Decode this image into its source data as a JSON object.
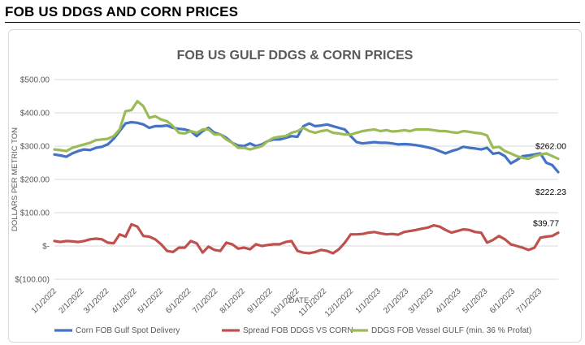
{
  "page": {
    "heading": "FOB US DDGS AND CORN PRICES"
  },
  "colors": {
    "corn": "#4472c4",
    "spread": "#c0504d",
    "ddgs": "#9bbb59",
    "grid": "#d9d9d9",
    "axis_text": "#595959",
    "title_text": "#595959"
  },
  "chart_data": {
    "type": "line",
    "title": "FOB US GULF DDGS & CORN PRICES",
    "xlabel": "DATE",
    "ylabel": "DOLLARS PER METRIC TON",
    "ylim": [
      -100,
      500
    ],
    "yticks": [
      {
        "value": 500,
        "label": "$500.00"
      },
      {
        "value": 400,
        "label": "$400.00"
      },
      {
        "value": 300,
        "label": "$300.00"
      },
      {
        "value": 200,
        "label": "$200.00"
      },
      {
        "value": 100,
        "label": "$100.00"
      },
      {
        "value": 0,
        "label": "$-"
      },
      {
        "value": -100,
        "label": "$(100.00)"
      }
    ],
    "x_range_weeks": [
      0,
      81
    ],
    "xticks": [
      {
        "week": 0,
        "label": "1/1/2022"
      },
      {
        "week": 4.4,
        "label": "2/1/2022"
      },
      {
        "week": 8.4,
        "label": "3/1/2022"
      },
      {
        "week": 12.9,
        "label": "4/1/2022"
      },
      {
        "week": 17.1,
        "label": "5/1/2022"
      },
      {
        "week": 21.6,
        "label": "6/1/2022"
      },
      {
        "week": 25.9,
        "label": "7/1/2022"
      },
      {
        "week": 30.3,
        "label": "8/1/2022"
      },
      {
        "week": 34.7,
        "label": "9/1/2022"
      },
      {
        "week": 39,
        "label": "10/1/2022"
      },
      {
        "week": 43.4,
        "label": "11/1/2022"
      },
      {
        "week": 47.7,
        "label": "12/1/2022"
      },
      {
        "week": 52.1,
        "label": "1/1/2023"
      },
      {
        "week": 56.6,
        "label": "2/1/2023"
      },
      {
        "week": 60.6,
        "label": "3/1/2023"
      },
      {
        "week": 65,
        "label": "4/1/2023"
      },
      {
        "week": 69.3,
        "label": "5/1/2023"
      },
      {
        "week": 73.7,
        "label": "6/1/2023"
      },
      {
        "week": 78,
        "label": "7/1/2023"
      }
    ],
    "series": [
      {
        "name": "Corn FOB Gulf Spot Delivery",
        "color_key": "corn",
        "values": [
          275,
          272,
          268,
          278,
          285,
          290,
          288,
          295,
          298,
          305,
          322,
          345,
          368,
          372,
          370,
          365,
          355,
          360,
          360,
          362,
          355,
          352,
          350,
          345,
          330,
          345,
          355,
          340,
          335,
          325,
          310,
          302,
          300,
          308,
          300,
          305,
          315,
          320,
          320,
          325,
          330,
          328,
          360,
          368,
          360,
          362,
          365,
          360,
          355,
          350,
          330,
          312,
          308,
          310,
          312,
          310,
          310,
          308,
          305,
          306,
          305,
          303,
          300,
          296,
          292,
          285,
          278,
          285,
          290,
          298,
          295,
          293,
          290,
          295,
          277,
          280,
          270,
          248,
          258,
          270,
          272,
          275,
          278,
          250,
          243,
          222
        ],
        "end_label": "$222.23"
      },
      {
        "name": "Spread FOB DDGS VS CORN",
        "color_key": "spread",
        "values": [
          15,
          12,
          15,
          14,
          12,
          15,
          20,
          22,
          20,
          10,
          8,
          35,
          28,
          65,
          58,
          30,
          28,
          20,
          5,
          -15,
          -18,
          -5,
          -5,
          15,
          8,
          -20,
          -2,
          -12,
          -15,
          10,
          5,
          -8,
          -5,
          -10,
          5,
          0,
          3,
          5,
          5,
          12,
          15,
          -15,
          -20,
          -22,
          -18,
          -12,
          -15,
          -22,
          -10,
          10,
          35,
          35,
          36,
          40,
          42,
          38,
          35,
          36,
          34,
          42,
          45,
          48,
          52,
          55,
          62,
          58,
          48,
          40,
          45,
          50,
          48,
          42,
          40,
          10,
          18,
          30,
          20,
          5,
          0,
          -5,
          -12,
          -5,
          25,
          28,
          30,
          39.77
        ],
        "end_label": "$39.77"
      },
      {
        "name": "DDGS FOB Vessel GULF  (min. 36 % Profat)",
        "color_key": "ddgs",
        "values": [
          290,
          288,
          285,
          295,
          300,
          305,
          310,
          318,
          320,
          322,
          330,
          350,
          405,
          408,
          435,
          420,
          385,
          390,
          380,
          375,
          360,
          340,
          338,
          345,
          340,
          350,
          350,
          335,
          335,
          320,
          310,
          295,
          295,
          290,
          295,
          300,
          315,
          325,
          328,
          330,
          340,
          345,
          355,
          345,
          340,
          345,
          348,
          340,
          338,
          335,
          335,
          340,
          345,
          348,
          350,
          345,
          348,
          344,
          345,
          348,
          345,
          350,
          350,
          350,
          348,
          345,
          345,
          342,
          340,
          345,
          343,
          340,
          338,
          332,
          295,
          298,
          285,
          278,
          270,
          265,
          262,
          270,
          275,
          278,
          270,
          262
        ],
        "end_label": "$262.00"
      }
    ],
    "legend_position": "bottom",
    "grid": "horizontal"
  }
}
